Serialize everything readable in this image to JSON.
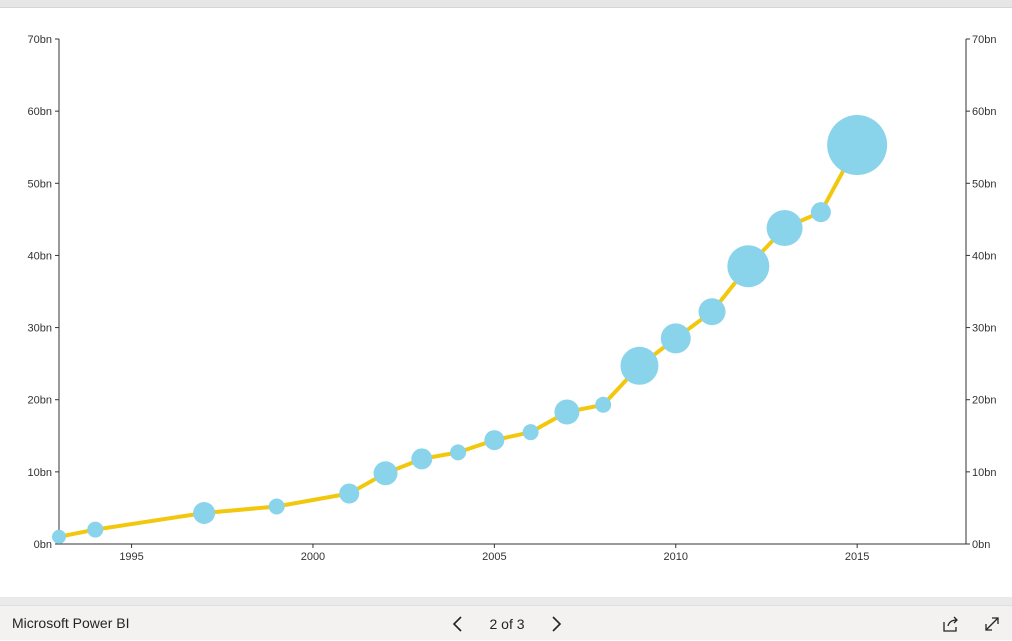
{
  "footer": {
    "brand": "Microsoft Power BI",
    "page_current": "2",
    "page_sep": "of",
    "page_total": "3",
    "prev_icon": "chevron-left-icon",
    "next_icon": "chevron-right-icon",
    "share_icon": "share-icon",
    "expand_icon": "expand-icon"
  },
  "colors": {
    "line": "#F2C80F",
    "bubble": "#8AD4EB",
    "axis": "#333333"
  },
  "chart_data": {
    "type": "line",
    "title": "",
    "xlabel": "",
    "ylabel": "",
    "xlim": [
      1993,
      2018
    ],
    "ylim": [
      0,
      70
    ],
    "x_ticks": [
      1995,
      2000,
      2005,
      2010,
      2015
    ],
    "y_ticks": [
      "0bn",
      "10bn",
      "20bn",
      "30bn",
      "40bn",
      "50bn",
      "60bn",
      "70bn"
    ],
    "y_tick_values": [
      0,
      10,
      20,
      30,
      40,
      50,
      60,
      70
    ],
    "grid": false,
    "secondary_y_axis": true,
    "bubble_size_meaning": "relative size (unlabeled)",
    "series": [
      {
        "points": [
          {
            "x": 1993,
            "y": 1.0,
            "size": 7
          },
          {
            "x": 1994,
            "y": 2.0,
            "size": 8
          },
          {
            "x": 1997,
            "y": 4.3,
            "size": 11
          },
          {
            "x": 1999,
            "y": 5.2,
            "size": 8
          },
          {
            "x": 2001,
            "y": 7.0,
            "size": 10
          },
          {
            "x": 2002,
            "y": 9.8,
            "size": 12
          },
          {
            "x": 2003,
            "y": 11.8,
            "size": 10.5
          },
          {
            "x": 2004,
            "y": 12.7,
            "size": 8
          },
          {
            "x": 2005,
            "y": 14.4,
            "size": 10
          },
          {
            "x": 2006,
            "y": 15.5,
            "size": 8
          },
          {
            "x": 2007,
            "y": 18.3,
            "size": 12.5
          },
          {
            "x": 2008,
            "y": 19.3,
            "size": 8
          },
          {
            "x": 2009,
            "y": 24.7,
            "size": 19
          },
          {
            "x": 2010,
            "y": 28.5,
            "size": 15
          },
          {
            "x": 2011,
            "y": 32.2,
            "size": 13.5
          },
          {
            "x": 2012,
            "y": 38.5,
            "size": 21
          },
          {
            "x": 2013,
            "y": 43.8,
            "size": 18
          },
          {
            "x": 2014,
            "y": 46.0,
            "size": 10
          },
          {
            "x": 2015,
            "y": 55.3,
            "size": 30
          }
        ]
      }
    ]
  }
}
